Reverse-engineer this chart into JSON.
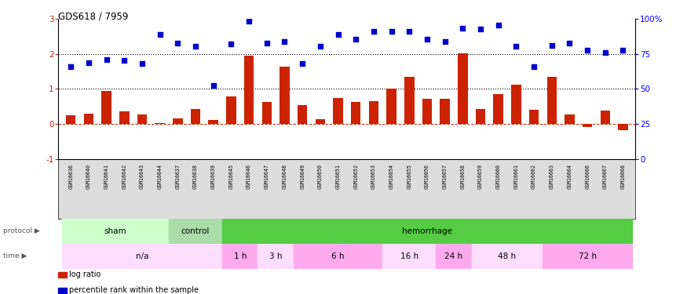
{
  "title": "GDS618 / 7959",
  "samples": [
    "GSM16636",
    "GSM16640",
    "GSM16641",
    "GSM16642",
    "GSM16643",
    "GSM16644",
    "GSM16637",
    "GSM16638",
    "GSM16639",
    "GSM16645",
    "GSM16646",
    "GSM16647",
    "GSM16648",
    "GSM16649",
    "GSM16650",
    "GSM16651",
    "GSM16652",
    "GSM16653",
    "GSM16654",
    "GSM16655",
    "GSM16656",
    "GSM16657",
    "GSM16658",
    "GSM16659",
    "GSM16660",
    "GSM16661",
    "GSM16662",
    "GSM16663",
    "GSM16664",
    "GSM16666",
    "GSM16667",
    "GSM16668"
  ],
  "log_ratio": [
    0.25,
    0.3,
    0.95,
    0.35,
    0.27,
    0.02,
    0.15,
    0.43,
    0.12,
    0.78,
    1.96,
    0.62,
    1.65,
    0.55,
    0.13,
    0.75,
    0.62,
    0.65,
    1.02,
    1.35,
    0.72,
    0.72,
    2.02,
    0.42,
    0.85,
    1.12,
    0.4,
    1.35,
    0.27,
    -0.08,
    0.38,
    -0.18
  ],
  "percentile_rank_left": [
    1.65,
    1.75,
    1.85,
    1.82,
    1.72,
    2.55,
    2.32,
    2.22,
    1.1,
    2.3,
    2.95,
    2.32,
    2.35,
    1.72,
    2.22,
    2.55,
    2.42,
    2.65,
    2.65,
    2.65,
    2.42,
    2.35,
    2.75,
    2.72,
    2.82,
    2.22,
    1.65,
    2.25,
    2.32,
    2.1,
    2.05,
    2.12
  ],
  "bar_color": "#cc2200",
  "dot_color": "#0000cc",
  "ytick_color": "#cc2200",
  "protocol_sham_color": "#ccffcc",
  "protocol_control_color": "#aaddaa",
  "protocol_hemorrhage_color": "#55cc44",
  "time_na_color": "#ffddff",
  "time_1h_color": "#ffaaee",
  "time_3h_color": "#ffddff",
  "time_6h_color": "#ffaaee",
  "time_16h_color": "#ffddff",
  "time_24h_color": "#ffaaee",
  "time_48h_color": "#ffddff",
  "time_72h_color": "#ffaaee",
  "sample_label_bg": "#dddddd"
}
